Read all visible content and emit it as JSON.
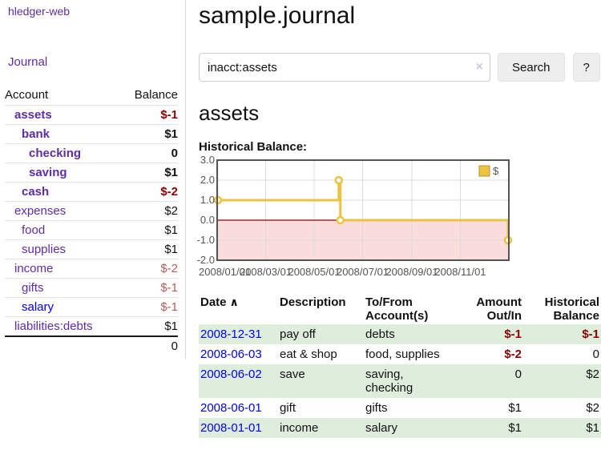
{
  "colors": {
    "link_purple": "#5e2ca5",
    "link_blue": "#0000ee",
    "negative_dark": "#8b0000",
    "negative_light": "#b85c5c",
    "row_green": "#dfeddd",
    "series_gold": "#edc240"
  },
  "sidebar": {
    "brand": "hledger-web",
    "journal_link": "Journal",
    "accounts_header": {
      "account": "Account",
      "balance": "Balance"
    },
    "accounts": [
      {
        "name": "assets",
        "depth": 1,
        "name_style": "purple-bold",
        "balance": "$-1",
        "balance_style": "dark-red"
      },
      {
        "name": "bank",
        "depth": 2,
        "name_style": "purple-bold",
        "balance": "$1",
        "balance_style": "black-bold"
      },
      {
        "name": "checking",
        "depth": 3,
        "name_style": "purple-bold",
        "balance": "0",
        "balance_style": "black-bold"
      },
      {
        "name": "saving",
        "depth": 3,
        "name_style": "purple-bold",
        "balance": "$1",
        "balance_style": "black-bold"
      },
      {
        "name": "cash",
        "depth": 2,
        "name_style": "purple-bold",
        "balance": "$-2",
        "balance_style": "dark-red"
      },
      {
        "name": "expenses",
        "depth": 1,
        "name_style": "purple",
        "balance": "$2",
        "balance_style": "black"
      },
      {
        "name": "food",
        "depth": 2,
        "name_style": "purple",
        "balance": "$1",
        "balance_style": "black"
      },
      {
        "name": "supplies",
        "depth": 2,
        "name_style": "purple",
        "balance": "$1",
        "balance_style": "black"
      },
      {
        "name": "income",
        "depth": 1,
        "name_style": "purple",
        "balance": "$-2",
        "balance_style": "light-red"
      },
      {
        "name": "gifts",
        "depth": 2,
        "name_style": "purple",
        "balance": "$-1",
        "balance_style": "light-red"
      },
      {
        "name": "salary",
        "depth": 2,
        "name_style": "blue",
        "balance": "$-1",
        "balance_style": "light-red"
      },
      {
        "name": "liabilities:debts",
        "depth": 1,
        "name_style": "purple",
        "balance": "$1",
        "balance_style": "black"
      }
    ],
    "total": "0"
  },
  "main": {
    "title": "sample.journal",
    "search": {
      "value": "inacct:assets",
      "clear_icon": "×",
      "search_button": "Search",
      "help_button": "?"
    },
    "account_heading": "assets",
    "chart_title": "Historical Balance:"
  },
  "chart_data": {
    "type": "line",
    "style": "step",
    "title": "Historical Balance",
    "series": [
      {
        "name": "$",
        "color": "#edc240",
        "points": [
          [
            "2008-01-01",
            1
          ],
          [
            "2008-06-01",
            2
          ],
          [
            "2008-06-03",
            0
          ],
          [
            "2008-12-31",
            -1
          ]
        ]
      }
    ],
    "x_range": [
      "2008-01-01",
      "2008-12-31"
    ],
    "x_tick_dates": [
      "2008-01-01",
      "2008-03-01",
      "2008-05-01",
      "2008-07-01",
      "2008-09-01",
      "2008-11-01"
    ],
    "x_tick_labels": [
      "2008/01/01",
      "2008/03/01",
      "2008/05/01",
      "2008/07/01",
      "2008/09/01",
      "2008/11/01"
    ],
    "y_ticks": [
      3,
      2,
      1,
      0,
      -1,
      -2
    ],
    "y_tick_labels": [
      "3.0",
      "2.0",
      "1.0",
      "0.0",
      "-1.0",
      "-2.0"
    ],
    "ylim": [
      -2,
      3
    ],
    "legend": {
      "label": "$",
      "position": "top-right"
    },
    "grid": true,
    "zero_line_color": "#8b0000",
    "negative_region_color": "#fbdcdc"
  },
  "register": {
    "headers": {
      "date": "Date",
      "description": "Description",
      "accounts": "To/From Account(s)",
      "amount": "Amount Out/In",
      "balance": "Historical Balance"
    },
    "sort_icon": "∧",
    "rows": [
      {
        "date": "2008-12-31",
        "description": "pay off",
        "accounts": "debts",
        "amount": "$-1",
        "amount_style": "dark-red",
        "balance": "$-1",
        "balance_style": "dark-red"
      },
      {
        "date": "2008-06-03",
        "description": "eat & shop",
        "accounts": "food, supplies",
        "amount": "$-2",
        "amount_style": "dark-red",
        "balance": "0",
        "balance_style": "black"
      },
      {
        "date": "2008-06-02",
        "description": "save",
        "accounts": "saving, checking",
        "amount": "0",
        "amount_style": "black",
        "balance": "$2",
        "balance_style": "black"
      },
      {
        "date": "2008-06-01",
        "description": "gift",
        "accounts": "gifts",
        "amount": "$1",
        "amount_style": "black",
        "balance": "$2",
        "balance_style": "black"
      },
      {
        "date": "2008-01-01",
        "description": "income",
        "accounts": "salary",
        "amount": "$1",
        "amount_style": "black",
        "balance": "$1",
        "balance_style": "black"
      }
    ]
  }
}
